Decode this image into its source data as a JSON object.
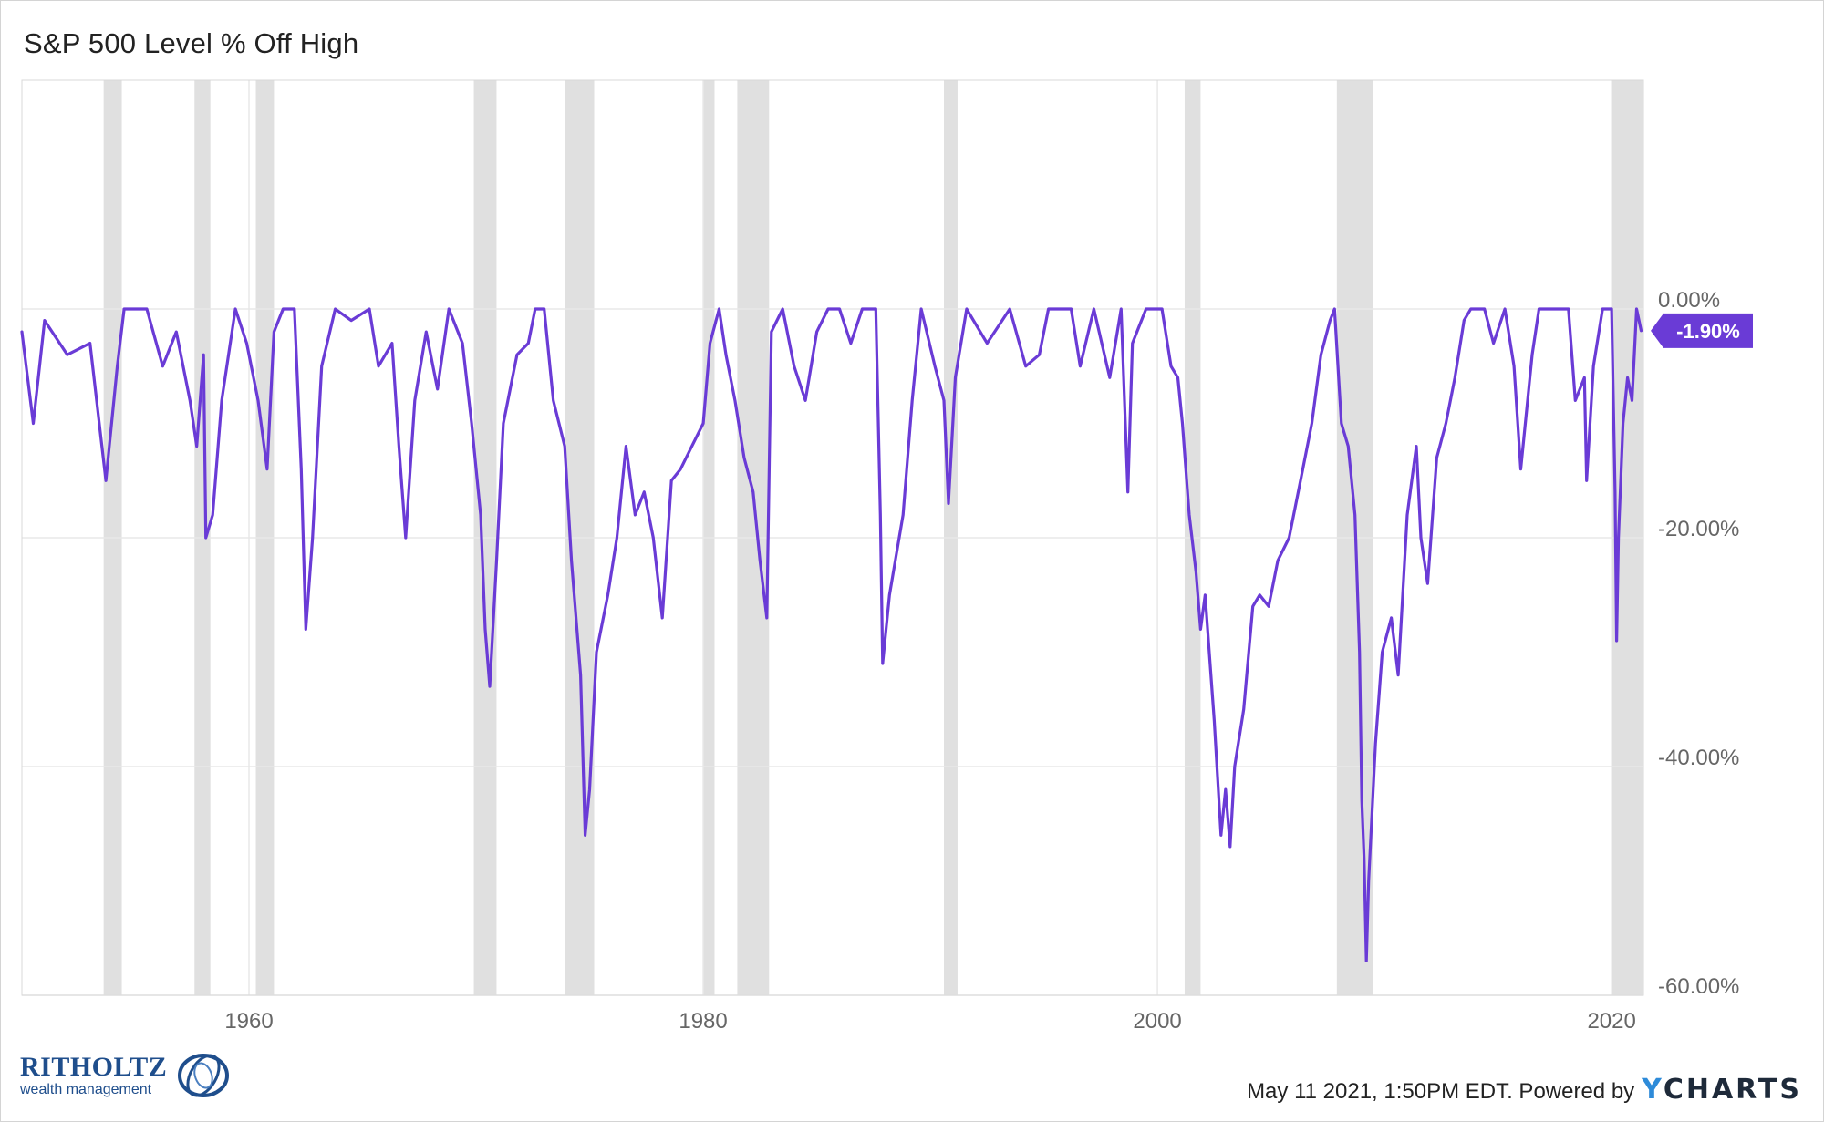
{
  "title": "S&P 500 Level % Off High",
  "footer": {
    "timestamp": "May 11 2021, 1:50PM EDT. Powered by",
    "brand_first": "Y",
    "brand_rest": "CHARTS"
  },
  "logo": {
    "name": "RITHOLTZ",
    "sub": "wealth management"
  },
  "colors": {
    "line": "#6a3bd6",
    "recession": "#e0e0e0",
    "grid": "#e8e8e8",
    "badge": "#6a3bd6"
  },
  "chart_data": {
    "type": "line",
    "title": "S&P 500 Level % Off High",
    "xlabel": "",
    "ylabel": "",
    "xlim": [
      1950.0,
      2021.4
    ],
    "ylim": [
      -60,
      20
    ],
    "x_ticks": [
      1960,
      1980,
      2000,
      2020
    ],
    "x_tick_labels": [
      "1960",
      "1980",
      "2000",
      "2020"
    ],
    "y_ticks": [
      0,
      -20,
      -40,
      -60
    ],
    "y_tick_labels": [
      "0.00%",
      "-20.00%",
      "-40.00%",
      "-60.00%"
    ],
    "grid": true,
    "last_value_label": "-1.90%",
    "last_value": -1.9,
    "recessions": [
      [
        1953.6,
        1954.4
      ],
      [
        1957.6,
        1958.3
      ],
      [
        1960.3,
        1961.1
      ],
      [
        1969.9,
        1970.9
      ],
      [
        1973.9,
        1975.2
      ],
      [
        1980.0,
        1980.5
      ],
      [
        1981.5,
        1982.9
      ],
      [
        1990.6,
        1991.2
      ],
      [
        2001.2,
        2001.9
      ],
      [
        2007.9,
        2009.5
      ],
      [
        2020.0,
        2021.4
      ]
    ],
    "series": [
      {
        "values": [
          [
            1950.0,
            -2
          ],
          [
            1950.5,
            -10
          ],
          [
            1951.0,
            -1
          ],
          [
            1952.0,
            -4
          ],
          [
            1953.0,
            -3
          ],
          [
            1953.7,
            -15
          ],
          [
            1954.2,
            -5
          ],
          [
            1954.5,
            0
          ],
          [
            1955.5,
            0
          ],
          [
            1956.2,
            -5
          ],
          [
            1956.8,
            -2
          ],
          [
            1957.4,
            -8
          ],
          [
            1957.7,
            -12
          ],
          [
            1958.0,
            -4
          ],
          [
            1958.1,
            -20
          ],
          [
            1958.4,
            -18
          ],
          [
            1958.8,
            -8
          ],
          [
            1959.4,
            0
          ],
          [
            1959.9,
            -3
          ],
          [
            1960.4,
            -8
          ],
          [
            1960.8,
            -14
          ],
          [
            1961.1,
            -2
          ],
          [
            1961.5,
            0
          ],
          [
            1962.0,
            0
          ],
          [
            1962.3,
            -14
          ],
          [
            1962.5,
            -28
          ],
          [
            1962.8,
            -20
          ],
          [
            1963.2,
            -5
          ],
          [
            1963.8,
            0
          ],
          [
            1964.5,
            -1
          ],
          [
            1965.3,
            0
          ],
          [
            1965.7,
            -5
          ],
          [
            1966.3,
            -3
          ],
          [
            1966.6,
            -12
          ],
          [
            1966.9,
            -20
          ],
          [
            1967.3,
            -8
          ],
          [
            1967.8,
            -2
          ],
          [
            1968.3,
            -7
          ],
          [
            1968.8,
            0
          ],
          [
            1969.4,
            -3
          ],
          [
            1969.8,
            -10
          ],
          [
            1970.2,
            -18
          ],
          [
            1970.4,
            -28
          ],
          [
            1970.6,
            -33
          ],
          [
            1970.9,
            -22
          ],
          [
            1971.2,
            -10
          ],
          [
            1971.8,
            -4
          ],
          [
            1972.3,
            -3
          ],
          [
            1972.6,
            0
          ],
          [
            1973.0,
            0
          ],
          [
            1973.4,
            -8
          ],
          [
            1973.9,
            -12
          ],
          [
            1974.2,
            -22
          ],
          [
            1974.6,
            -32
          ],
          [
            1974.8,
            -46
          ],
          [
            1975.0,
            -42
          ],
          [
            1975.3,
            -30
          ],
          [
            1975.8,
            -25
          ],
          [
            1976.2,
            -20
          ],
          [
            1976.6,
            -12
          ],
          [
            1977.0,
            -18
          ],
          [
            1977.4,
            -16
          ],
          [
            1977.8,
            -20
          ],
          [
            1978.2,
            -27
          ],
          [
            1978.6,
            -15
          ],
          [
            1979.0,
            -14
          ],
          [
            1979.5,
            -12
          ],
          [
            1980.0,
            -10
          ],
          [
            1980.3,
            -3
          ],
          [
            1980.7,
            0
          ],
          [
            1981.0,
            -4
          ],
          [
            1981.4,
            -8
          ],
          [
            1981.8,
            -13
          ],
          [
            1982.2,
            -16
          ],
          [
            1982.5,
            -22
          ],
          [
            1982.8,
            -27
          ],
          [
            1983.0,
            -2
          ],
          [
            1983.5,
            0
          ],
          [
            1984.0,
            -5
          ],
          [
            1984.5,
            -8
          ],
          [
            1985.0,
            -2
          ],
          [
            1985.5,
            0
          ],
          [
            1986.0,
            0
          ],
          [
            1986.5,
            -3
          ],
          [
            1987.0,
            0
          ],
          [
            1987.6,
            0
          ],
          [
            1987.8,
            -18
          ],
          [
            1987.9,
            -31
          ],
          [
            1988.2,
            -25
          ],
          [
            1988.8,
            -18
          ],
          [
            1989.2,
            -8
          ],
          [
            1989.6,
            0
          ],
          [
            1990.2,
            -5
          ],
          [
            1990.6,
            -8
          ],
          [
            1990.8,
            -17
          ],
          [
            1991.1,
            -6
          ],
          [
            1991.6,
            0
          ],
          [
            1992.5,
            -3
          ],
          [
            1993.5,
            0
          ],
          [
            1994.2,
            -5
          ],
          [
            1994.8,
            -4
          ],
          [
            1995.2,
            0
          ],
          [
            1996.2,
            0
          ],
          [
            1996.6,
            -5
          ],
          [
            1997.2,
            0
          ],
          [
            1997.9,
            -6
          ],
          [
            1998.4,
            0
          ],
          [
            1998.7,
            -16
          ],
          [
            1998.9,
            -3
          ],
          [
            1999.5,
            0
          ],
          [
            2000.2,
            0
          ],
          [
            2000.6,
            -5
          ],
          [
            2000.9,
            -6
          ],
          [
            2001.1,
            -10
          ],
          [
            2001.4,
            -18
          ],
          [
            2001.7,
            -23
          ],
          [
            2001.9,
            -28
          ],
          [
            2002.1,
            -25
          ],
          [
            2002.5,
            -36
          ],
          [
            2002.8,
            -46
          ],
          [
            2003.0,
            -42
          ],
          [
            2003.2,
            -47
          ],
          [
            2003.4,
            -40
          ],
          [
            2003.8,
            -35
          ],
          [
            2004.2,
            -26
          ],
          [
            2004.5,
            -25
          ],
          [
            2004.9,
            -26
          ],
          [
            2005.3,
            -22
          ],
          [
            2005.8,
            -20
          ],
          [
            2006.3,
            -15
          ],
          [
            2006.8,
            -10
          ],
          [
            2007.2,
            -4
          ],
          [
            2007.6,
            -1
          ],
          [
            2007.8,
            0
          ],
          [
            2008.1,
            -10
          ],
          [
            2008.4,
            -12
          ],
          [
            2008.7,
            -18
          ],
          [
            2008.9,
            -30
          ],
          [
            2009.0,
            -43
          ],
          [
            2009.1,
            -48
          ],
          [
            2009.2,
            -57
          ],
          [
            2009.3,
            -50
          ],
          [
            2009.6,
            -38
          ],
          [
            2009.9,
            -30
          ],
          [
            2010.3,
            -27
          ],
          [
            2010.6,
            -32
          ],
          [
            2011.0,
            -18
          ],
          [
            2011.4,
            -12
          ],
          [
            2011.6,
            -20
          ],
          [
            2011.9,
            -24
          ],
          [
            2012.3,
            -13
          ],
          [
            2012.7,
            -10
          ],
          [
            2013.1,
            -6
          ],
          [
            2013.5,
            -1
          ],
          [
            2013.8,
            0
          ],
          [
            2014.4,
            0
          ],
          [
            2014.8,
            -3
          ],
          [
            2015.3,
            0
          ],
          [
            2015.7,
            -5
          ],
          [
            2016.0,
            -14
          ],
          [
            2016.5,
            -4
          ],
          [
            2016.8,
            0
          ],
          [
            2017.5,
            0
          ],
          [
            2018.1,
            0
          ],
          [
            2018.4,
            -8
          ],
          [
            2018.8,
            -6
          ],
          [
            2018.9,
            -15
          ],
          [
            2019.2,
            -5
          ],
          [
            2019.6,
            0
          ],
          [
            2020.0,
            0
          ],
          [
            2020.15,
            -16
          ],
          [
            2020.22,
            -29
          ],
          [
            2020.3,
            -20
          ],
          [
            2020.5,
            -10
          ],
          [
            2020.7,
            -6
          ],
          [
            2020.9,
            -8
          ],
          [
            2021.1,
            0
          ],
          [
            2021.3,
            -1.9
          ]
        ]
      }
    ]
  }
}
